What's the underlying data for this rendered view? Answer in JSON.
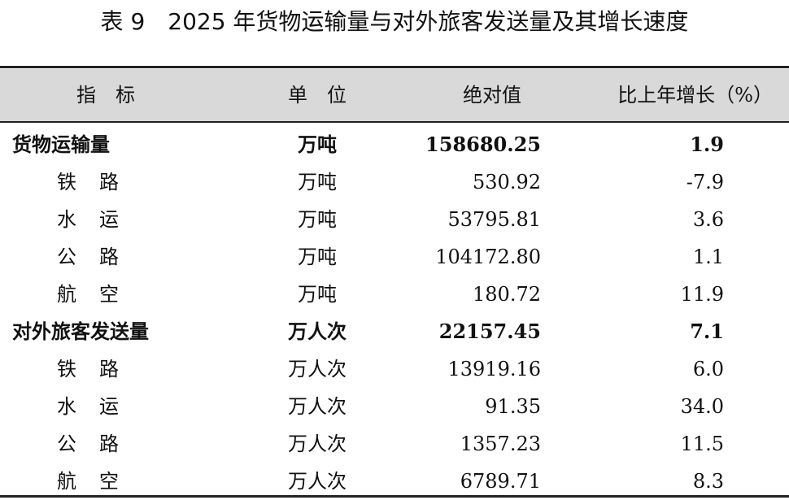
{
  "title": "表 9　2025 年货物运输量与对外旅客发送量及其增长速度",
  "table": {
    "header": [
      "指　标",
      "单　位",
      "绝对值",
      "比上年增长（%）"
    ],
    "rows": [
      [
        "货物运输量",
        "万吨",
        "158680.25",
        "1.9"
      ],
      [
        "铁　路",
        "万吨",
        "530.92",
        "-7.9"
      ],
      [
        "水　运",
        "万吨",
        "53795.81",
        "3.6"
      ],
      [
        "公　路",
        "万吨",
        "104172.80",
        "1.1"
      ],
      [
        "航　空",
        "万吨",
        "180.72",
        "11.9"
      ],
      [
        "对外旅客发送量",
        "万人次",
        "22157.45",
        "7.1"
      ],
      [
        "铁　路",
        "万人次",
        "13919.16",
        "6.0"
      ],
      [
        "水　运",
        "万人次",
        "91.35",
        "34.0"
      ],
      [
        "公　路",
        "万人次",
        "1357.23",
        "11.5"
      ],
      [
        "航　空",
        "万人次",
        "6789.71",
        "8.3"
      ]
    ]
  }
}
